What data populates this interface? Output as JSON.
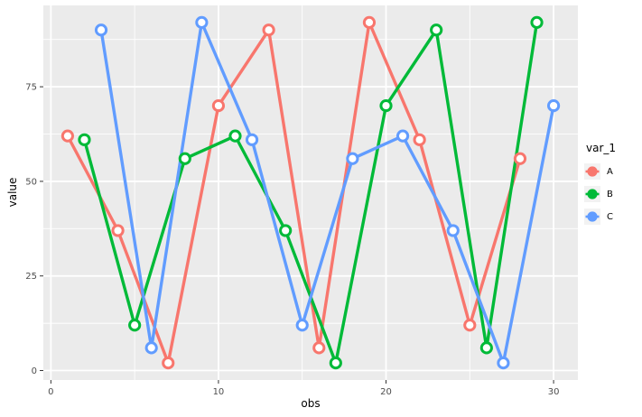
{
  "chart_data": {
    "type": "line",
    "title": "",
    "xlabel": "obs",
    "ylabel": "value",
    "legend_title": "var_1",
    "legend_position": "right",
    "grid": "major+minor",
    "panel_bg": "#EBEBEB",
    "grid_color": "#FFFFFF",
    "tick_label_color": "#4D4D4D",
    "tick_mark_color": "#333333",
    "point_fill": "#FFFFFF",
    "x_ticks": [
      0,
      10,
      20,
      30
    ],
    "x_minor": [
      5,
      15,
      25
    ],
    "y_ticks": [
      0,
      25,
      50,
      75
    ],
    "y_minor": [
      12.5,
      37.5,
      62.5,
      87.5
    ],
    "xlim": [
      -0.45,
      31.45
    ],
    "ylim": [
      -2.5,
      96.5
    ],
    "series": [
      {
        "name": "A",
        "color": "#F8766D",
        "x": [
          1,
          4,
          7,
          10,
          13,
          16,
          19,
          22,
          25,
          28
        ],
        "y": [
          62,
          37,
          2,
          70,
          90,
          6,
          92,
          61,
          12,
          56
        ]
      },
      {
        "name": "B",
        "color": "#00BA38",
        "x": [
          2,
          5,
          8,
          11,
          14,
          17,
          20,
          23,
          26,
          29
        ],
        "y": [
          61,
          12,
          56,
          62,
          37,
          2,
          70,
          90,
          6,
          92
        ]
      },
      {
        "name": "C",
        "color": "#619CFF",
        "x": [
          3,
          6,
          9,
          12,
          15,
          18,
          21,
          24,
          27,
          30
        ],
        "y": [
          90,
          6,
          92,
          61,
          12,
          56,
          62,
          37,
          2,
          70
        ]
      }
    ]
  }
}
